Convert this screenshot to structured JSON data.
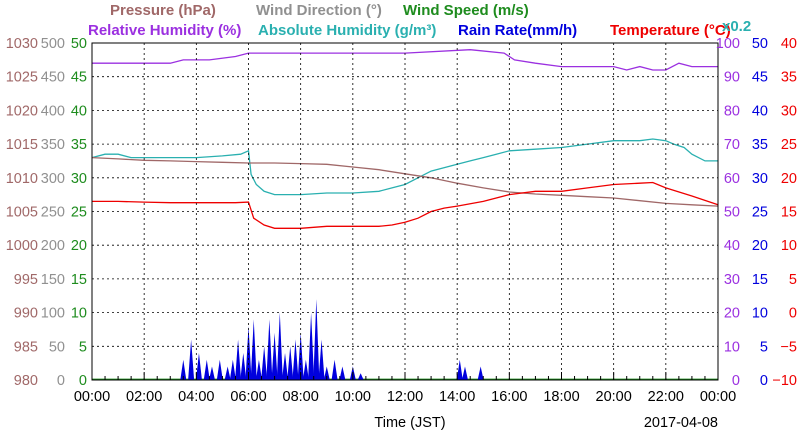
{
  "chart_data": {
    "type": "line",
    "date_label": "2017-04-08",
    "xlabel": "Time (JST)",
    "x_ticks": [
      "00:00",
      "02:00",
      "04:00",
      "06:00",
      "08:00",
      "10:00",
      "12:00",
      "14:00",
      "16:00",
      "18:00",
      "20:00",
      "22:00",
      "00:00"
    ],
    "x_range_hours": [
      0,
      24
    ],
    "grid": true,
    "header_row1": [
      {
        "text": "Pressure (hPa)",
        "color": "#a06868"
      },
      {
        "text": "Wind Direction (°)",
        "color": "#909090"
      },
      {
        "text": "Wind Speed (m/s)",
        "color": "#1e8c1e"
      }
    ],
    "header_row2": [
      {
        "text": "Relative Humidity (%)",
        "color": "#9b30e0"
      },
      {
        "text": "Absolute Humidity (g/m³)",
        "color": "#2ab0b0"
      },
      {
        "text": "Rain Rate(mm/h)",
        "color": "#0000dd"
      },
      {
        "text": "Temperature (°C)",
        "color": "#ee0000"
      },
      {
        "text": "x0.2",
        "color": "#2ab0b0"
      }
    ],
    "axes": [
      {
        "name": "pressure",
        "side": "left",
        "color": "#a06868",
        "min": 980,
        "max": 1030,
        "ticks": [
          "1030",
          "1025",
          "1020",
          "1015",
          "1010",
          "1005",
          "1000",
          "995",
          "990",
          "985",
          "980"
        ]
      },
      {
        "name": "wind_direction",
        "side": "left",
        "color": "#909090",
        "min": 0,
        "max": 500,
        "ticks": [
          "500",
          "450",
          "400",
          "350",
          "300",
          "250",
          "200",
          "150",
          "100",
          "50",
          "0"
        ]
      },
      {
        "name": "wind_speed",
        "side": "left",
        "color": "#1e8c1e",
        "min": 0,
        "max": 50,
        "ticks": [
          "50",
          "45",
          "40",
          "35",
          "30",
          "25",
          "20",
          "15",
          "10",
          "5",
          "0"
        ]
      },
      {
        "name": "humidity",
        "side": "right",
        "color": "#9b30e0",
        "min": 0,
        "max": 100,
        "ticks": [
          "100",
          "90",
          "80",
          "70",
          "60",
          "50",
          "40",
          "30",
          "20",
          "10",
          "0"
        ]
      },
      {
        "name": "rain_rate",
        "side": "right",
        "color": "#0000dd",
        "min": 0,
        "max": 50,
        "ticks": [
          "50",
          "45",
          "40",
          "35",
          "30",
          "25",
          "20",
          "15",
          "10",
          "5",
          "0"
        ]
      },
      {
        "name": "temperature",
        "side": "right",
        "color": "#ee0000",
        "min": -10,
        "max": 40,
        "ticks": [
          "40",
          "35",
          "30",
          "25",
          "20",
          "15",
          "10",
          "5",
          "0",
          "−5",
          "−10"
        ]
      }
    ],
    "series": [
      {
        "axis": "humidity",
        "color": "#9b30e0",
        "kind": "line",
        "x": [
          0,
          3,
          3.5,
          4.5,
          5.5,
          6.0,
          9,
          12,
          14.5,
          15.8,
          16.2,
          17,
          18,
          19,
          20,
          20.5,
          21,
          21.5,
          22,
          22.5,
          23,
          24
        ],
        "values": [
          94,
          94,
          95,
          95,
          96,
          97,
          97,
          97,
          98,
          97,
          95,
          94,
          93,
          93,
          93,
          92,
          93,
          92,
          92,
          94,
          93,
          93
        ]
      },
      {
        "axis": "humidity",
        "color": "#2ab0b0",
        "kind": "line",
        "x": [
          0,
          0.5,
          1,
          1.5,
          2,
          3,
          4,
          5,
          5.7,
          6.0,
          6.1,
          6.3,
          6.6,
          7,
          8,
          9,
          10,
          11,
          11.5,
          12,
          12.5,
          13,
          14,
          14.5,
          15,
          15.5,
          16,
          17,
          18,
          19,
          20,
          21,
          21.5,
          22,
          22.3,
          22.7,
          23,
          23.5,
          24
        ],
        "values": [
          66,
          67,
          67,
          66,
          66,
          66,
          66,
          66.5,
          67,
          68,
          61,
          58,
          56,
          55,
          55,
          55.5,
          55.5,
          56,
          57,
          58,
          60,
          62,
          64,
          65,
          66,
          67,
          68,
          68.5,
          69,
          70,
          71,
          71,
          71.5,
          71,
          70,
          69,
          67,
          65,
          65
        ]
      },
      {
        "axis": "pressure",
        "color": "#a06868",
        "kind": "line",
        "x": [
          0,
          1,
          2,
          3,
          4,
          5,
          6,
          7,
          8,
          9,
          10,
          11,
          12,
          13,
          14,
          15,
          16,
          17,
          18,
          19,
          20,
          21,
          22,
          23,
          24
        ],
        "values": [
          1013,
          1012.8,
          1012.6,
          1012.5,
          1012.4,
          1012.3,
          1012.2,
          1012.2,
          1012.1,
          1012.0,
          1011.6,
          1011.2,
          1010.6,
          1010.0,
          1009.2,
          1008.5,
          1007.9,
          1007.6,
          1007.4,
          1007.2,
          1007.0,
          1006.6,
          1006.2,
          1006.0,
          1005.8
        ]
      },
      {
        "axis": "temperature",
        "color": "#ee0000",
        "kind": "line",
        "x": [
          0,
          1,
          2,
          3,
          4,
          5,
          5.5,
          6.0,
          6.2,
          6.6,
          7,
          8,
          9,
          10,
          11,
          11.5,
          12,
          12.5,
          13,
          13.5,
          14,
          15,
          16,
          17,
          18,
          19,
          20,
          21,
          21.5,
          22,
          23,
          24
        ],
        "values": [
          16.5,
          16.5,
          16.4,
          16.3,
          16.3,
          16.3,
          16.3,
          16.4,
          14,
          13,
          12.5,
          12.5,
          12.8,
          12.8,
          12.8,
          13,
          13.4,
          14,
          15,
          15.5,
          15.8,
          16.5,
          17.5,
          18,
          18,
          18.5,
          19,
          19.2,
          19.3,
          18.5,
          17.3,
          16.0
        ]
      },
      {
        "axis": "wind_speed",
        "color": "#1e8c1e",
        "kind": "line",
        "x": [
          0,
          24
        ],
        "values": [
          0.1,
          0.1
        ]
      },
      {
        "axis": "rain_rate",
        "color": "#0000dd",
        "kind": "bar",
        "x": [
          3.5,
          3.8,
          4.1,
          4.4,
          4.6,
          4.9,
          5.2,
          5.4,
          5.6,
          5.8,
          6.0,
          6.2,
          6.4,
          6.6,
          6.8,
          7.0,
          7.2,
          7.4,
          7.6,
          7.8,
          8.0,
          8.2,
          8.4,
          8.6,
          8.8,
          9.0,
          9.3,
          9.6,
          10.0,
          10.3,
          14.1,
          14.3,
          14.9
        ],
        "values": [
          3,
          6,
          4,
          3,
          2,
          3,
          2,
          3,
          6,
          4,
          8,
          9,
          3,
          5,
          9,
          7,
          10,
          4,
          5,
          6,
          7,
          3,
          10,
          12,
          6,
          2,
          3,
          2,
          2,
          1,
          3,
          2,
          2
        ]
      }
    ]
  }
}
